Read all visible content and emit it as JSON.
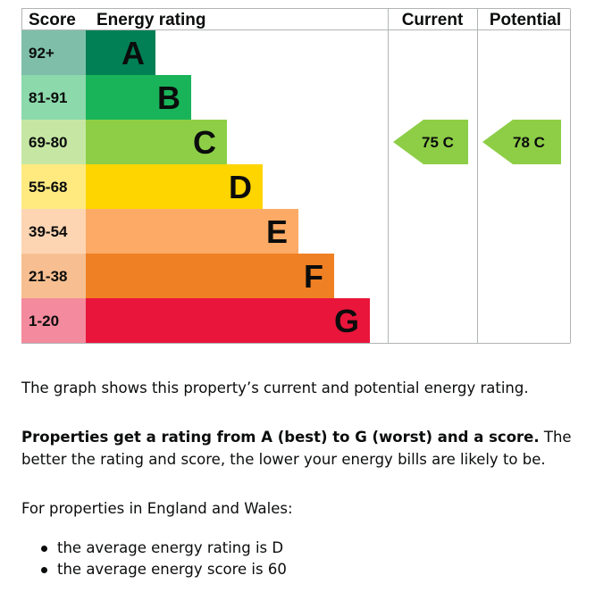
{
  "chart_data": {
    "type": "table",
    "headers": {
      "score": "Score",
      "rating": "Energy rating",
      "current": "Current",
      "potential": "Potential"
    },
    "bands": [
      {
        "range": "92+",
        "letter": "A",
        "color": "#008054",
        "score_bg": "#7fbfa9"
      },
      {
        "range": "81-91",
        "letter": "B",
        "color": "#19b459",
        "score_bg": "#8cd9ac"
      },
      {
        "range": "69-80",
        "letter": "C",
        "color": "#8dce46",
        "score_bg": "#c6e7a3"
      },
      {
        "range": "55-68",
        "letter": "D",
        "color": "#ffd500",
        "score_bg": "#ffea80"
      },
      {
        "range": "39-54",
        "letter": "E",
        "color": "#fcaa65",
        "score_bg": "#fdd5b2"
      },
      {
        "range": "21-38",
        "letter": "F",
        "color": "#ef8023",
        "score_bg": "#f7bf91"
      },
      {
        "range": "1-20",
        "letter": "G",
        "color": "#e9153b",
        "score_bg": "#f48a9d"
      }
    ],
    "current": {
      "score": 75,
      "letter": "C",
      "label": "75  C"
    },
    "potential": {
      "score": 78,
      "letter": "C",
      "label": "78  C"
    }
  },
  "text": {
    "intro": "The graph shows this property’s current and potential energy rating.",
    "bold_lead": "Properties get a rating from A (best) to G (worst) and a score.",
    "rest": " The better the rating and score, the lower your energy bills are likely to be.",
    "region": "For properties in England and Wales:",
    "bullets": [
      "the average energy rating is D",
      "the average energy score is 60"
    ]
  }
}
